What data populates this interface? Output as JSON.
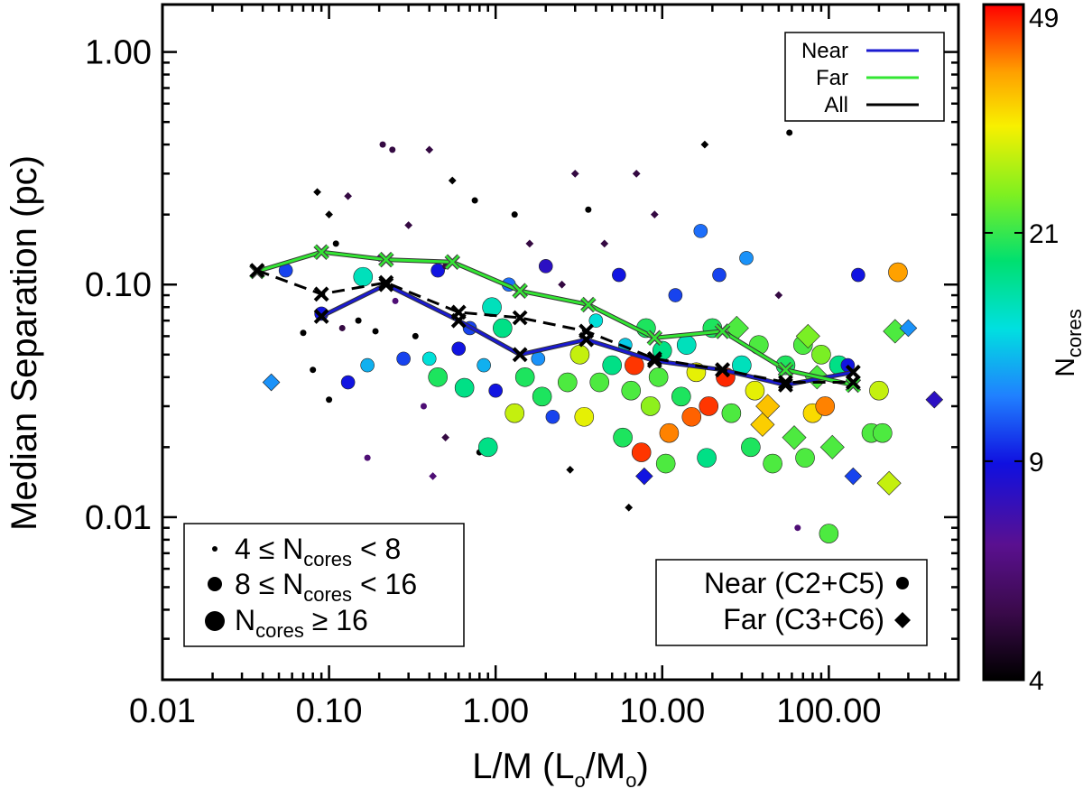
{
  "chart_data": {
    "type": "scatter",
    "x_scale": "log",
    "y_scale": "log",
    "xlim": [
      0.01,
      600
    ],
    "ylim": [
      0.002,
      1.6
    ],
    "xlabel": "L/M (L",
    "xlabel_sym1": "o",
    "xlabel_mid": "/M",
    "xlabel_sym2": "o",
    "xlabel_end": ")",
    "ylabel": "Median Separation (pc)",
    "x_ticks": [
      {
        "v": 0.01,
        "label": "0.01"
      },
      {
        "v": 0.1,
        "label": "0.10"
      },
      {
        "v": 1,
        "label": "1.00"
      },
      {
        "v": 10,
        "label": "10.00"
      },
      {
        "v": 100,
        "label": "100.00"
      }
    ],
    "y_ticks": [
      {
        "v": 0.01,
        "label": "0.01"
      },
      {
        "v": 0.1,
        "label": "0.10"
      },
      {
        "v": 1,
        "label": "1.00"
      }
    ],
    "colorbar": {
      "label_main": "N",
      "label_sub": "cores",
      "ticks": [
        {
          "v": 4,
          "label": "4"
        },
        {
          "v": 9,
          "label": "9"
        },
        {
          "v": 21,
          "label": "21"
        },
        {
          "v": 49,
          "label": "49"
        }
      ],
      "range": [
        4,
        49
      ]
    },
    "size_legend": [
      {
        "size": "small",
        "text_a": "4 ≤ N",
        "sub": "cores",
        "text_b": " < 8"
      },
      {
        "size": "medium",
        "text_a": "8 ≤ N",
        "sub": "cores",
        "text_b": " < 16"
      },
      {
        "size": "large",
        "text_a": "N",
        "sub": "cores",
        "text_b": " ≥ 16"
      }
    ],
    "marker_legend": [
      {
        "label": "Near (C2+C5)",
        "marker": "circle"
      },
      {
        "label": "Far (C3+C6)",
        "marker": "diamond"
      }
    ],
    "line_legend": [
      {
        "label": "Near",
        "color": "#1a1ad0"
      },
      {
        "label": "Far",
        "color": "#33e633"
      },
      {
        "label": "All",
        "color": "#000000"
      }
    ],
    "series": [
      {
        "name": "Near",
        "color": "#1a1ad0",
        "x": [
          0.09,
          0.22,
          0.6,
          1.4,
          3.5,
          9,
          23,
          55,
          140
        ],
        "y": [
          0.073,
          0.1,
          0.07,
          0.05,
          0.058,
          0.047,
          0.043,
          0.037,
          0.042
        ]
      },
      {
        "name": "Far",
        "color": "#33e633",
        "x": [
          0.037,
          0.09,
          0.22,
          0.55,
          1.4,
          3.6,
          9,
          23,
          55,
          140
        ],
        "y": [
          0.114,
          0.138,
          0.128,
          0.125,
          0.094,
          0.082,
          0.059,
          0.063,
          0.043,
          0.037
        ]
      },
      {
        "name": "All",
        "color": "#000000",
        "dashed": true,
        "x": [
          0.037,
          0.09,
          0.22,
          0.6,
          1.4,
          3.5,
          9,
          23,
          55,
          140
        ],
        "y": [
          0.115,
          0.091,
          0.102,
          0.076,
          0.072,
          0.063,
          0.048,
          0.043,
          0.038,
          0.038
        ]
      }
    ],
    "points": [
      {
        "x": 0.045,
        "y": 0.038,
        "n": 12,
        "m": "d"
      },
      {
        "x": 0.055,
        "y": 0.115,
        "n": 10,
        "m": "c"
      },
      {
        "x": 0.07,
        "y": 0.062,
        "n": 4,
        "m": "c"
      },
      {
        "x": 0.08,
        "y": 0.043,
        "n": 4,
        "m": "c"
      },
      {
        "x": 0.085,
        "y": 0.25,
        "n": 4,
        "m": "d"
      },
      {
        "x": 0.09,
        "y": 0.075,
        "n": 9,
        "m": "c"
      },
      {
        "x": 0.1,
        "y": 0.032,
        "n": 4,
        "m": "c"
      },
      {
        "x": 0.1,
        "y": 0.2,
        "n": 4,
        "m": "d"
      },
      {
        "x": 0.11,
        "y": 0.15,
        "n": 4,
        "m": "c"
      },
      {
        "x": 0.12,
        "y": 0.065,
        "n": 5,
        "m": "c"
      },
      {
        "x": 0.13,
        "y": 0.038,
        "n": 9,
        "m": "c"
      },
      {
        "x": 0.13,
        "y": 0.24,
        "n": 5,
        "m": "d"
      },
      {
        "x": 0.15,
        "y": 0.07,
        "n": 4,
        "m": "c"
      },
      {
        "x": 0.16,
        "y": 0.108,
        "n": 16,
        "m": "c"
      },
      {
        "x": 0.17,
        "y": 0.045,
        "n": 13,
        "m": "c"
      },
      {
        "x": 0.17,
        "y": 0.018,
        "n": 6,
        "m": "c"
      },
      {
        "x": 0.19,
        "y": 0.063,
        "n": 4,
        "m": "c"
      },
      {
        "x": 0.2,
        "y": 0.13,
        "n": 6,
        "m": "d"
      },
      {
        "x": 0.21,
        "y": 0.4,
        "n": 5,
        "m": "c"
      },
      {
        "x": 0.24,
        "y": 0.38,
        "n": 5,
        "m": "c"
      },
      {
        "x": 0.25,
        "y": 0.085,
        "n": 6,
        "m": "c"
      },
      {
        "x": 0.28,
        "y": 0.048,
        "n": 10,
        "m": "c"
      },
      {
        "x": 0.3,
        "y": 0.18,
        "n": 5,
        "m": "d"
      },
      {
        "x": 0.33,
        "y": 0.06,
        "n": 4,
        "m": "c"
      },
      {
        "x": 0.37,
        "y": 0.03,
        "n": 6,
        "m": "c"
      },
      {
        "x": 0.4,
        "y": 0.38,
        "n": 5,
        "m": "d"
      },
      {
        "x": 0.4,
        "y": 0.048,
        "n": 15,
        "m": "c"
      },
      {
        "x": 0.42,
        "y": 0.015,
        "n": 6,
        "m": "d"
      },
      {
        "x": 0.45,
        "y": 0.115,
        "n": 9,
        "m": "c"
      },
      {
        "x": 0.45,
        "y": 0.04,
        "n": 20,
        "m": "c"
      },
      {
        "x": 0.5,
        "y": 0.12,
        "n": 5,
        "m": "c"
      },
      {
        "x": 0.5,
        "y": 0.022,
        "n": 5,
        "m": "d"
      },
      {
        "x": 0.55,
        "y": 0.28,
        "n": 4,
        "m": "d"
      },
      {
        "x": 0.6,
        "y": 0.053,
        "n": 9,
        "m": "c"
      },
      {
        "x": 0.65,
        "y": 0.036,
        "n": 18,
        "m": "c"
      },
      {
        "x": 0.7,
        "y": 0.065,
        "n": 10,
        "m": "c"
      },
      {
        "x": 0.75,
        "y": 0.23,
        "n": 4,
        "m": "c"
      },
      {
        "x": 0.8,
        "y": 0.019,
        "n": 4,
        "m": "c"
      },
      {
        "x": 0.85,
        "y": 0.045,
        "n": 13,
        "m": "c"
      },
      {
        "x": 0.9,
        "y": 0.02,
        "n": 18,
        "m": "c"
      },
      {
        "x": 0.95,
        "y": 0.08,
        "n": 16,
        "m": "c"
      },
      {
        "x": 1.0,
        "y": 0.035,
        "n": 9,
        "m": "c"
      },
      {
        "x": 1.1,
        "y": 0.065,
        "n": 18,
        "m": "c"
      },
      {
        "x": 1.2,
        "y": 0.1,
        "n": 11,
        "m": "c"
      },
      {
        "x": 1.3,
        "y": 0.2,
        "n": 4,
        "m": "c"
      },
      {
        "x": 1.3,
        "y": 0.028,
        "n": 28,
        "m": "c"
      },
      {
        "x": 1.5,
        "y": 0.04,
        "n": 20,
        "m": "c"
      },
      {
        "x": 1.6,
        "y": 0.15,
        "n": 5,
        "m": "d"
      },
      {
        "x": 1.8,
        "y": 0.048,
        "n": 12,
        "m": "c"
      },
      {
        "x": 1.9,
        "y": 0.033,
        "n": 20,
        "m": "c"
      },
      {
        "x": 2.0,
        "y": 0.12,
        "n": 8,
        "m": "c"
      },
      {
        "x": 2.2,
        "y": 0.027,
        "n": 10,
        "m": "c"
      },
      {
        "x": 2.5,
        "y": 0.1,
        "n": 5,
        "m": "d"
      },
      {
        "x": 2.7,
        "y": 0.038,
        "n": 22,
        "m": "c"
      },
      {
        "x": 2.8,
        "y": 0.016,
        "n": 4,
        "m": "d"
      },
      {
        "x": 3.0,
        "y": 0.3,
        "n": 5,
        "m": "d"
      },
      {
        "x": 3.2,
        "y": 0.05,
        "n": 28,
        "m": "c"
      },
      {
        "x": 3.4,
        "y": 0.027,
        "n": 30,
        "m": "c"
      },
      {
        "x": 3.6,
        "y": 0.21,
        "n": 4,
        "m": "c"
      },
      {
        "x": 4.0,
        "y": 0.07,
        "n": 15,
        "m": "c"
      },
      {
        "x": 4.2,
        "y": 0.038,
        "n": 22,
        "m": "c"
      },
      {
        "x": 4.5,
        "y": 0.15,
        "n": 5,
        "m": "d"
      },
      {
        "x": 5.0,
        "y": 0.045,
        "n": 18,
        "m": "c"
      },
      {
        "x": 5.5,
        "y": 0.11,
        "n": 9,
        "m": "c"
      },
      {
        "x": 5.8,
        "y": 0.022,
        "n": 20,
        "m": "c"
      },
      {
        "x": 6.0,
        "y": 0.055,
        "n": 14,
        "m": "c"
      },
      {
        "x": 6.3,
        "y": 0.011,
        "n": 4,
        "m": "d"
      },
      {
        "x": 6.5,
        "y": 0.035,
        "n": 22,
        "m": "c"
      },
      {
        "x": 6.8,
        "y": 0.045,
        "n": 45,
        "m": "c"
      },
      {
        "x": 7.0,
        "y": 0.3,
        "n": 5,
        "m": "d"
      },
      {
        "x": 7.5,
        "y": 0.019,
        "n": 45,
        "m": "c"
      },
      {
        "x": 7.8,
        "y": 0.015,
        "n": 9,
        "m": "d"
      },
      {
        "x": 8.0,
        "y": 0.065,
        "n": 20,
        "m": "c"
      },
      {
        "x": 8.5,
        "y": 0.03,
        "n": 25,
        "m": "c"
      },
      {
        "x": 9.0,
        "y": 0.2,
        "n": 5,
        "m": "d"
      },
      {
        "x": 9.5,
        "y": 0.04,
        "n": 22,
        "m": "c"
      },
      {
        "x": 10.0,
        "y": 0.052,
        "n": 18,
        "m": "c"
      },
      {
        "x": 10.5,
        "y": 0.017,
        "n": 22,
        "m": "c"
      },
      {
        "x": 11.0,
        "y": 0.023,
        "n": 40,
        "m": "c"
      },
      {
        "x": 12.0,
        "y": 0.09,
        "n": 10,
        "m": "c"
      },
      {
        "x": 13.0,
        "y": 0.033,
        "n": 20,
        "m": "c"
      },
      {
        "x": 14.0,
        "y": 0.055,
        "n": 16,
        "m": "c"
      },
      {
        "x": 15.0,
        "y": 0.027,
        "n": 42,
        "m": "c"
      },
      {
        "x": 16.0,
        "y": 0.042,
        "n": 30,
        "m": "c"
      },
      {
        "x": 17.0,
        "y": 0.17,
        "n": 11,
        "m": "c"
      },
      {
        "x": 18.0,
        "y": 0.4,
        "n": 4,
        "m": "d"
      },
      {
        "x": 18.5,
        "y": 0.018,
        "n": 18,
        "m": "c"
      },
      {
        "x": 19.0,
        "y": 0.03,
        "n": 45,
        "m": "c"
      },
      {
        "x": 20.0,
        "y": 0.065,
        "n": 20,
        "m": "c"
      },
      {
        "x": 22.0,
        "y": 0.11,
        "n": 10,
        "m": "c"
      },
      {
        "x": 24.0,
        "y": 0.04,
        "n": 46,
        "m": "c"
      },
      {
        "x": 26.0,
        "y": 0.028,
        "n": 22,
        "m": "c"
      },
      {
        "x": 28.0,
        "y": 0.065,
        "n": 22,
        "m": "d"
      },
      {
        "x": 30.0,
        "y": 0.045,
        "n": 16,
        "m": "c"
      },
      {
        "x": 32.0,
        "y": 0.13,
        "n": 12,
        "m": "c"
      },
      {
        "x": 34.0,
        "y": 0.02,
        "n": 20,
        "m": "c"
      },
      {
        "x": 36.0,
        "y": 0.035,
        "n": 30,
        "m": "c"
      },
      {
        "x": 38.0,
        "y": 0.055,
        "n": 22,
        "m": "c"
      },
      {
        "x": 40.0,
        "y": 0.025,
        "n": 34,
        "m": "d"
      },
      {
        "x": 43.0,
        "y": 0.03,
        "n": 35,
        "m": "d"
      },
      {
        "x": 46.0,
        "y": 0.017,
        "n": 22,
        "m": "c"
      },
      {
        "x": 50.0,
        "y": 0.09,
        "n": 5,
        "m": "d"
      },
      {
        "x": 55.0,
        "y": 0.045,
        "n": 20,
        "m": "c"
      },
      {
        "x": 58.0,
        "y": 0.45,
        "n": 4,
        "m": "c"
      },
      {
        "x": 62.0,
        "y": 0.022,
        "n": 22,
        "m": "d"
      },
      {
        "x": 65.0,
        "y": 0.009,
        "n": 6,
        "m": "c"
      },
      {
        "x": 70.0,
        "y": 0.055,
        "n": 22,
        "m": "c"
      },
      {
        "x": 72.0,
        "y": 0.018,
        "n": 22,
        "m": "c"
      },
      {
        "x": 75.0,
        "y": 0.06,
        "n": 24,
        "m": "d"
      },
      {
        "x": 80.0,
        "y": 0.028,
        "n": 33,
        "m": "c"
      },
      {
        "x": 85.0,
        "y": 0.04,
        "n": 22,
        "m": "d"
      },
      {
        "x": 90.0,
        "y": 0.05,
        "n": 24,
        "m": "c"
      },
      {
        "x": 95.0,
        "y": 0.03,
        "n": 40,
        "m": "c"
      },
      {
        "x": 100.0,
        "y": 0.0085,
        "n": 22,
        "m": "c"
      },
      {
        "x": 105.0,
        "y": 0.02,
        "n": 22,
        "m": "d"
      },
      {
        "x": 115.0,
        "y": 0.045,
        "n": 18,
        "m": "c"
      },
      {
        "x": 130.0,
        "y": 0.045,
        "n": 9,
        "m": "c"
      },
      {
        "x": 140.0,
        "y": 0.015,
        "n": 10,
        "m": "d"
      },
      {
        "x": 150.0,
        "y": 0.11,
        "n": 9,
        "m": "c"
      },
      {
        "x": 180.0,
        "y": 0.023,
        "n": 22,
        "m": "c"
      },
      {
        "x": 200.0,
        "y": 0.035,
        "n": 28,
        "m": "c"
      },
      {
        "x": 210.0,
        "y": 0.023,
        "n": 22,
        "m": "c"
      },
      {
        "x": 230.0,
        "y": 0.014,
        "n": 28,
        "m": "d"
      },
      {
        "x": 250.0,
        "y": 0.063,
        "n": 22,
        "m": "d"
      },
      {
        "x": 260.0,
        "y": 0.113,
        "n": 38,
        "m": "c"
      },
      {
        "x": 300.0,
        "y": 0.065,
        "n": 12,
        "m": "d"
      },
      {
        "x": 430.0,
        "y": 0.032,
        "n": 8,
        "m": "d"
      }
    ]
  }
}
